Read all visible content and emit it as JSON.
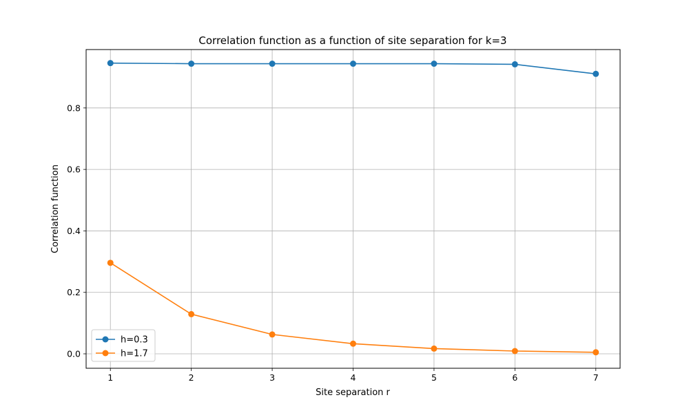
{
  "chart_data": {
    "type": "line",
    "title": "Correlation function as a function of site separation for k=3",
    "xlabel": "Site separation r",
    "ylabel": "Correlation function",
    "x": [
      1,
      2,
      3,
      4,
      5,
      6,
      7
    ],
    "xticks": [
      "1",
      "2",
      "3",
      "4",
      "5",
      "6",
      "7"
    ],
    "yticks": [
      "0.0",
      "0.2",
      "0.4",
      "0.6",
      "0.8"
    ],
    "xlim": [
      0.7,
      7.3
    ],
    "ylim": [
      -0.047,
      0.99
    ],
    "grid": true,
    "legend_position": "lower-left",
    "series": [
      {
        "name": "h=0.3",
        "color": "#1f77b4",
        "values": [
          0.946,
          0.944,
          0.944,
          0.944,
          0.944,
          0.942,
          0.911
        ]
      },
      {
        "name": "h=1.7",
        "color": "#ff7f0e",
        "values": [
          0.296,
          0.129,
          0.063,
          0.033,
          0.017,
          0.009,
          0.005
        ]
      }
    ]
  }
}
